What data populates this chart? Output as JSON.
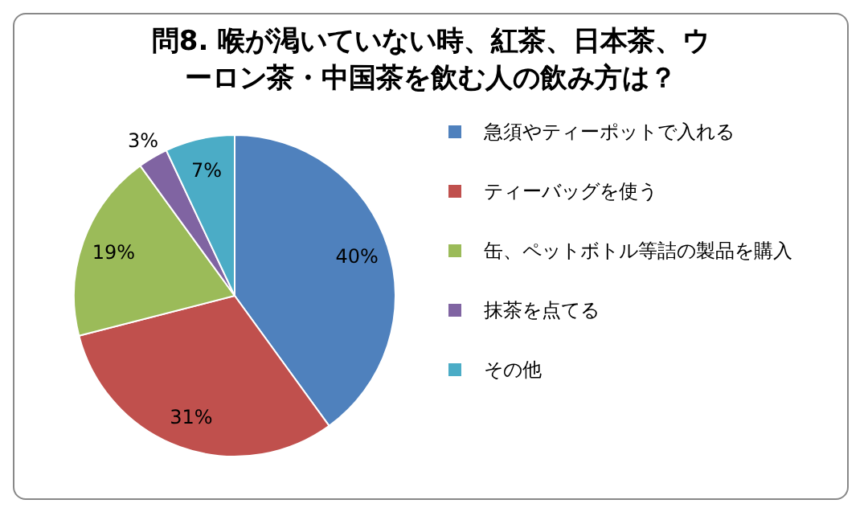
{
  "chart_data": {
    "type": "pie",
    "title": "問8. 喉が渇いていない時、紅茶、日本茶、ウーロン茶・中国茶を飲む人の飲み方は？",
    "categories": [
      "急須やティーポットで入れる",
      "ティーバッグを使う",
      "缶、ペットボトル等詰の製品を購入",
      "抹茶を点てる",
      "その他"
    ],
    "values": [
      40,
      31,
      19,
      3,
      7
    ],
    "colors": [
      "#4f81bd",
      "#c0504d",
      "#9bbb59",
      "#8064a2",
      "#4bacc6"
    ],
    "value_labels": [
      "40%",
      "31%",
      "19%",
      "3%",
      "7%"
    ],
    "legend": "right"
  }
}
